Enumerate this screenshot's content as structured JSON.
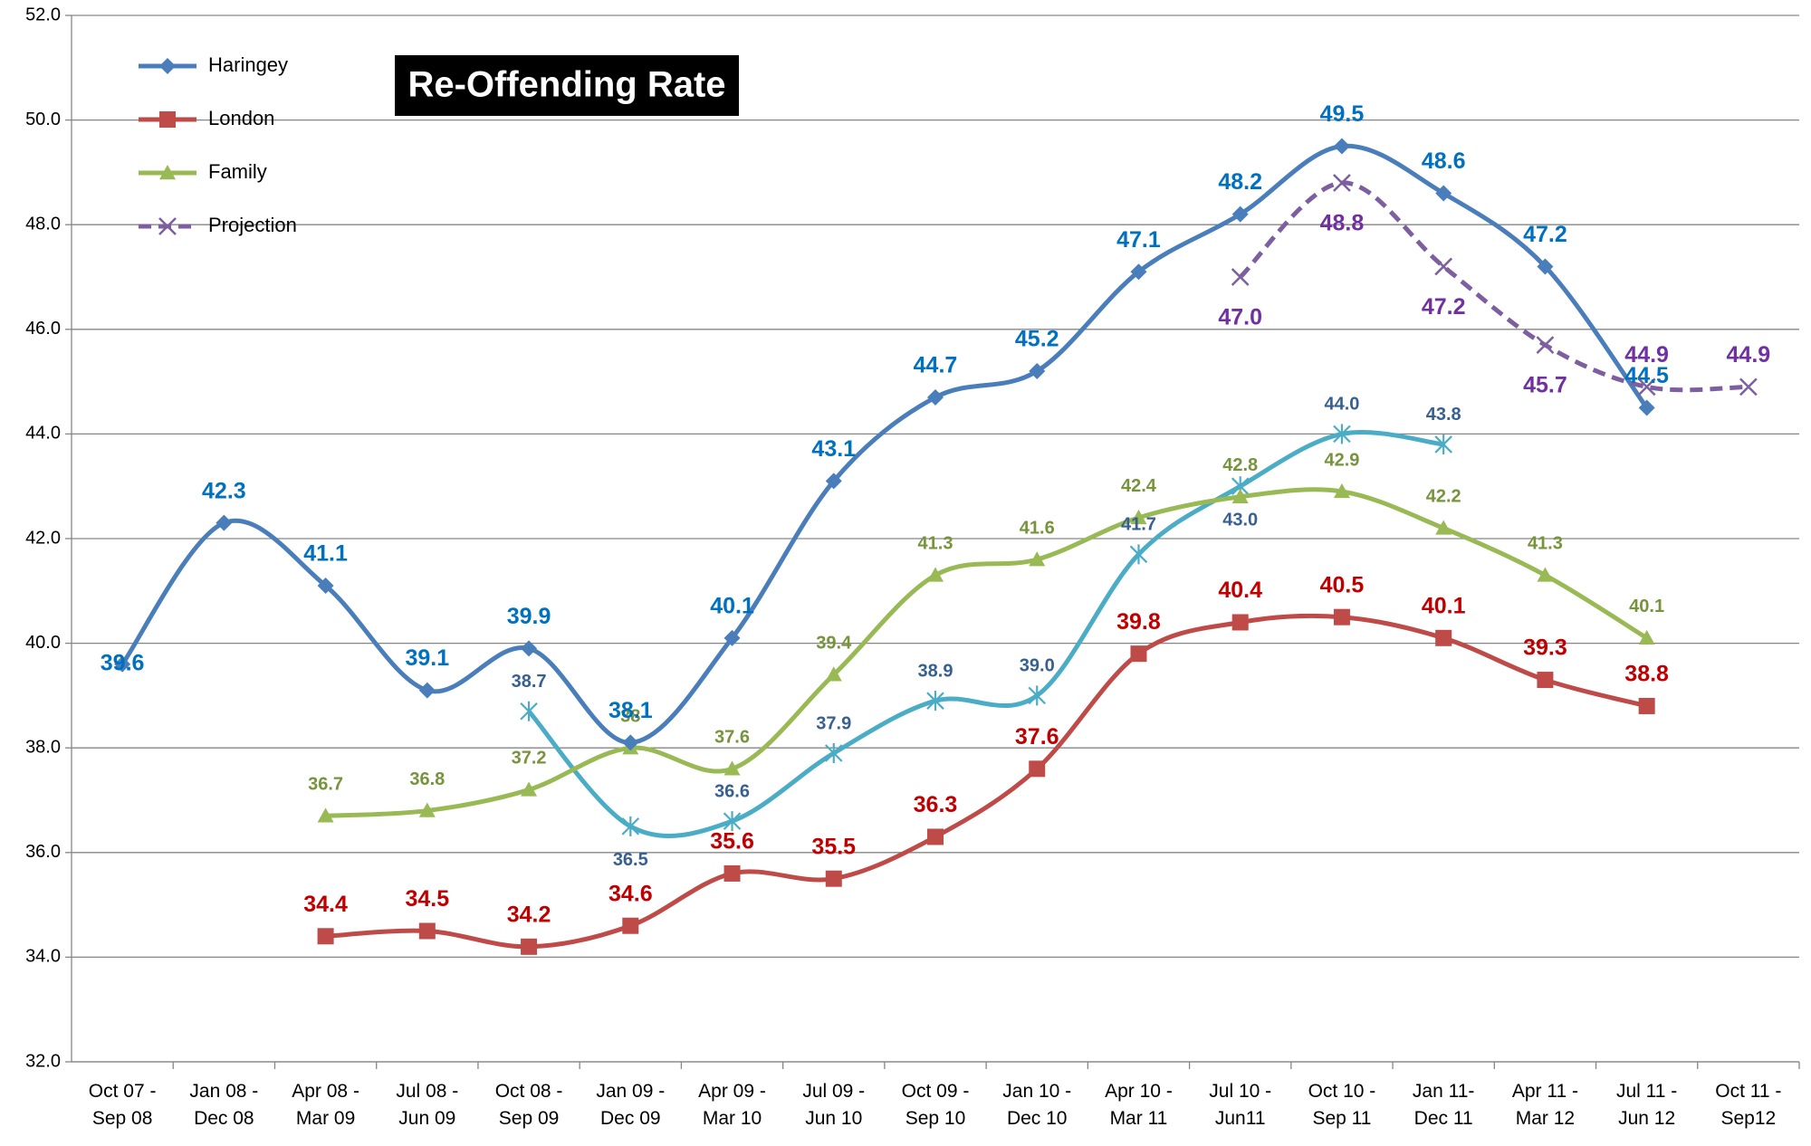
{
  "chart_data": {
    "type": "line",
    "title": "Re-Offending Rate",
    "categories": [
      "Oct 07 -\nSep 08",
      "Jan 08 -\nDec 08",
      "Apr 08 -\nMar 09",
      "Jul 08 -\nJun 09",
      "Oct 08 -\nSep 09",
      "Jan 09 -\nDec 09",
      "Apr 09 -\nMar 10",
      "Jul 09 -\nJun 10",
      "Oct 09 -\nSep 10",
      "Jan 10 -\nDec 10",
      "Apr 10 -\nMar 11",
      "Jul 10 -\nJun11",
      "Oct 10 -\nSep 11",
      "Jan 11-\nDec 11",
      "Apr 11 -\nMar 12",
      "Jul 11 -\nJun 12",
      "Oct 11 -\nSep12"
    ],
    "ylim": [
      32,
      52
    ],
    "yticks": [
      {
        "value": 32,
        "label": "32.0"
      },
      {
        "value": 34,
        "label": "34.0"
      },
      {
        "value": 36,
        "label": "36.0"
      },
      {
        "value": 38,
        "label": "38.0"
      },
      {
        "value": 40,
        "label": "40.0"
      },
      {
        "value": 42,
        "label": "42.0"
      },
      {
        "value": 44,
        "label": "44.0"
      },
      {
        "value": 46,
        "label": "46.0"
      },
      {
        "value": 48,
        "label": "48.0"
      },
      {
        "value": 50,
        "label": "50.0"
      },
      {
        "value": 52,
        "label": "52.0"
      }
    ],
    "grid": true,
    "smooth": true,
    "legend": "top-left",
    "series": [
      {
        "name": "Haringey",
        "color": "#4a7ebb",
        "label_color": "#0070c0",
        "marker": "diamond",
        "values": [
          39.6,
          42.3,
          41.1,
          39.1,
          39.9,
          38.1,
          40.1,
          43.1,
          44.7,
          45.2,
          47.1,
          48.2,
          49.5,
          48.6,
          47.2,
          44.5,
          null
        ]
      },
      {
        "name": "London",
        "color": "#be4b48",
        "label_color": "#c00000",
        "marker": "square",
        "values": [
          null,
          null,
          34.4,
          34.5,
          34.2,
          34.6,
          35.6,
          35.5,
          36.3,
          37.6,
          39.8,
          40.4,
          40.5,
          40.1,
          39.3,
          38.8,
          null
        ]
      },
      {
        "name": "Family",
        "color": "#98b954",
        "label_color": "#77933c",
        "marker": "triangle",
        "values": [
          null,
          null,
          36.7,
          36.8,
          37.2,
          38,
          37.6,
          39.4,
          41.3,
          41.6,
          42.4,
          42.8,
          42.9,
          42.2,
          41.3,
          40.1,
          null
        ]
      },
      {
        "name": "Projection",
        "color": "#7d5fa0",
        "label_color": "#7030a0",
        "marker": "x",
        "dashed": true,
        "values": [
          null,
          null,
          null,
          null,
          null,
          null,
          null,
          null,
          null,
          null,
          null,
          47,
          48.8,
          47.2,
          45.7,
          44.9,
          44.9
        ],
        "value_labels": [
          null,
          null,
          null,
          null,
          null,
          null,
          null,
          null,
          null,
          null,
          null,
          "47.0",
          "48.8",
          "47.2",
          "45.7",
          "44.9",
          "44.9"
        ]
      },
      {
        "color": "#4bacc6",
        "label_color": "#376092",
        "marker": "star",
        "values": [
          null,
          null,
          null,
          null,
          38.7,
          36.5,
          36.6,
          37.9,
          38.9,
          39,
          41.7,
          43,
          44,
          43.8,
          null,
          null,
          null
        ],
        "value_labels": [
          null,
          null,
          null,
          null,
          "38.7",
          "36.5",
          "36.6",
          "37.9",
          "38.9",
          "39.0",
          "41.7",
          "43.0",
          "44.0",
          "43.8",
          null,
          null,
          null
        ]
      }
    ]
  }
}
